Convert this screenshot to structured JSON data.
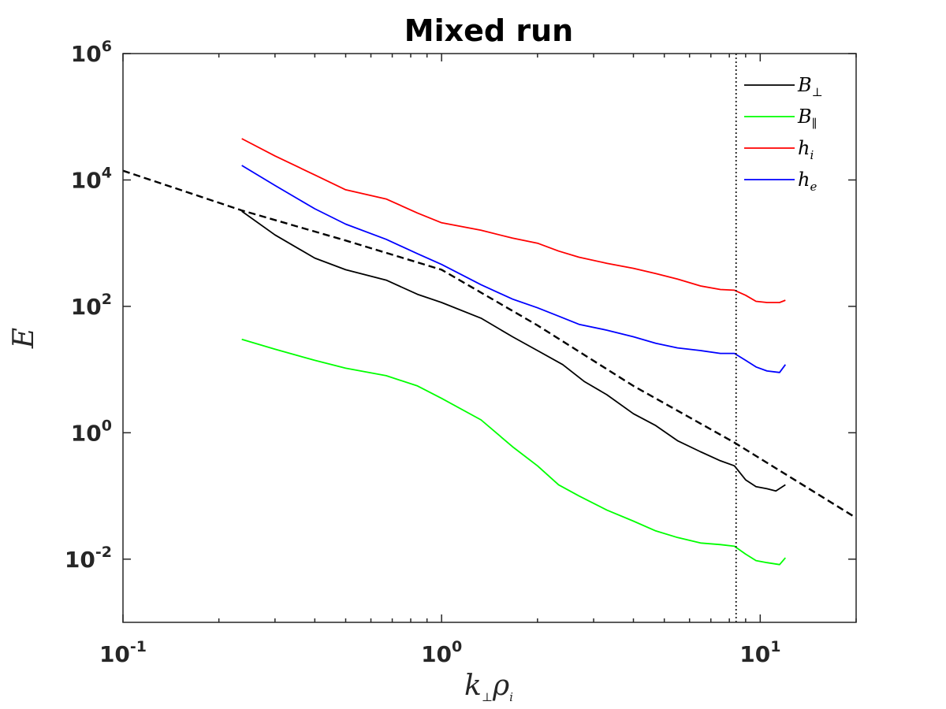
{
  "chart_data": {
    "type": "line",
    "title": "Mixed run",
    "xlabel": {
      "base": "k",
      "base_sub": "⊥",
      "second": "ρ",
      "second_sub": "i"
    },
    "ylabel": "E",
    "xscale": "log",
    "yscale": "log",
    "xlim": [
      0.1,
      20
    ],
    "ylim": [
      0.001,
      1000000
    ],
    "x_ticks": [
      {
        "value": 0.1,
        "base": "10",
        "exp": "-1"
      },
      {
        "value": 1,
        "base": "10",
        "exp": "0"
      },
      {
        "value": 10,
        "base": "10",
        "exp": "1"
      }
    ],
    "y_ticks": [
      {
        "value": 0.01,
        "base": "10",
        "exp": "-2"
      },
      {
        "value": 1,
        "base": "10",
        "exp": "0"
      },
      {
        "value": 100,
        "base": "10",
        "exp": "2"
      },
      {
        "value": 10000,
        "base": "10",
        "exp": "4"
      },
      {
        "value": 1000000,
        "base": "10",
        "exp": "6"
      }
    ],
    "grid": false,
    "legend": "top-right",
    "series": [
      {
        "name": {
          "base": "B",
          "sub": "⊥"
        },
        "color": "#000000",
        "points": [
          [
            0.236,
            3200
          ],
          [
            0.3,
            1350
          ],
          [
            0.4,
            580
          ],
          [
            0.5,
            380
          ],
          [
            0.67,
            260
          ],
          [
            0.84,
            155
          ],
          [
            1.0,
            115
          ],
          [
            1.33,
            65
          ],
          [
            1.67,
            33
          ],
          [
            2.0,
            20
          ],
          [
            2.4,
            12
          ],
          [
            2.8,
            6.5
          ],
          [
            3.3,
            4.0
          ],
          [
            4.0,
            2.0
          ],
          [
            4.7,
            1.3
          ],
          [
            5.5,
            0.75
          ],
          [
            6.5,
            0.5
          ],
          [
            7.5,
            0.36
          ],
          [
            8.3,
            0.3
          ],
          [
            9.0,
            0.18
          ],
          [
            9.7,
            0.14
          ],
          [
            10.5,
            0.13
          ],
          [
            11.2,
            0.12
          ],
          [
            12.0,
            0.15
          ]
        ]
      },
      {
        "name": {
          "base": "B",
          "sub": "∥"
        },
        "color": "#00ff00",
        "points": [
          [
            0.236,
            30
          ],
          [
            0.3,
            21
          ],
          [
            0.4,
            14
          ],
          [
            0.5,
            10.5
          ],
          [
            0.67,
            8
          ],
          [
            0.84,
            5.5
          ],
          [
            1.0,
            3.5
          ],
          [
            1.33,
            1.6
          ],
          [
            1.67,
            0.6
          ],
          [
            2.0,
            0.3
          ],
          [
            2.33,
            0.15
          ],
          [
            2.7,
            0.1
          ],
          [
            3.3,
            0.06
          ],
          [
            4.0,
            0.04
          ],
          [
            4.7,
            0.028
          ],
          [
            5.5,
            0.022
          ],
          [
            6.5,
            0.018
          ],
          [
            7.5,
            0.017
          ],
          [
            8.3,
            0.016
          ],
          [
            9.0,
            0.012
          ],
          [
            9.7,
            0.0095
          ],
          [
            10.5,
            0.0088
          ],
          [
            11.5,
            0.0082
          ],
          [
            12.0,
            0.0105
          ]
        ]
      },
      {
        "name": {
          "base": "h",
          "sub": "i"
        },
        "color": "#ff0000",
        "points": [
          [
            0.236,
            45000
          ],
          [
            0.3,
            24000
          ],
          [
            0.4,
            12000
          ],
          [
            0.5,
            7000
          ],
          [
            0.67,
            5000
          ],
          [
            0.84,
            3000
          ],
          [
            1.0,
            2100
          ],
          [
            1.33,
            1600
          ],
          [
            1.67,
            1200
          ],
          [
            2.0,
            1000
          ],
          [
            2.33,
            750
          ],
          [
            2.7,
            600
          ],
          [
            3.3,
            480
          ],
          [
            4.0,
            400
          ],
          [
            4.7,
            330
          ],
          [
            5.5,
            270
          ],
          [
            6.5,
            210
          ],
          [
            7.5,
            185
          ],
          [
            8.3,
            180
          ],
          [
            9.0,
            150
          ],
          [
            9.7,
            120
          ],
          [
            10.5,
            115
          ],
          [
            11.5,
            115
          ],
          [
            12.0,
            125
          ]
        ]
      },
      {
        "name": {
          "base": "h",
          "sub": "e"
        },
        "color": "#0000ff",
        "points": [
          [
            0.236,
            17000
          ],
          [
            0.3,
            8200
          ],
          [
            0.4,
            3500
          ],
          [
            0.5,
            2000
          ],
          [
            0.67,
            1150
          ],
          [
            0.84,
            680
          ],
          [
            1.0,
            460
          ],
          [
            1.33,
            220
          ],
          [
            1.67,
            130
          ],
          [
            2.0,
            95
          ],
          [
            2.33,
            70
          ],
          [
            2.7,
            52
          ],
          [
            3.3,
            42
          ],
          [
            4.0,
            33
          ],
          [
            4.7,
            26
          ],
          [
            5.5,
            22
          ],
          [
            6.5,
            20
          ],
          [
            7.5,
            18
          ],
          [
            8.3,
            18
          ],
          [
            9.0,
            14
          ],
          [
            9.7,
            11
          ],
          [
            10.5,
            9.5
          ],
          [
            11.5,
            9
          ],
          [
            12.0,
            12
          ]
        ]
      },
      {
        "name": "",
        "style": "dashed",
        "color": "#000000",
        "points": [
          [
            0.1,
            14000
          ],
          [
            0.236,
            3300
          ],
          [
            0.5,
            1100
          ],
          [
            1.0,
            380
          ],
          [
            2.0,
            50
          ],
          [
            4.0,
            5.5
          ],
          [
            8.3,
            0.7
          ],
          [
            20,
            0.045
          ]
        ]
      }
    ],
    "vertical_line": {
      "x": 8.4,
      "style": "dotted",
      "color": "#000000"
    }
  }
}
